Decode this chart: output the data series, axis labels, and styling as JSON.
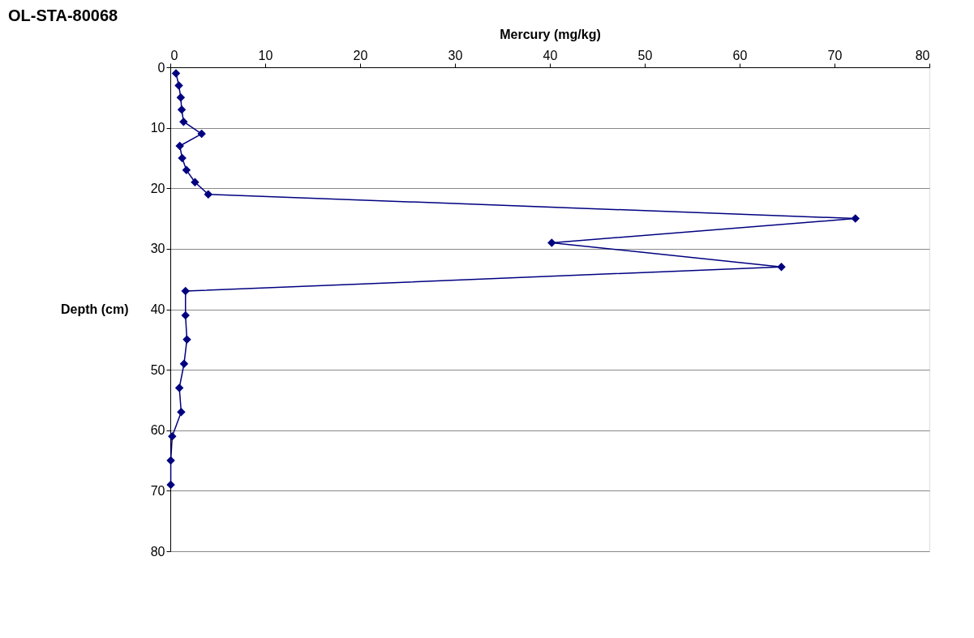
{
  "chart_data": {
    "type": "line",
    "title": "OL-STA-80068",
    "xlabel": "Mercury (mg/kg)",
    "ylabel": "Depth (cm)",
    "xlim": [
      0,
      80
    ],
    "xticks": [
      0,
      10,
      20,
      30,
      40,
      50,
      60,
      70,
      80
    ],
    "ylim": [
      80,
      0
    ],
    "yticks": [
      0,
      10,
      20,
      30,
      40,
      50,
      60,
      70,
      80
    ],
    "grid": "y",
    "marker": "diamond",
    "line_style": "solid",
    "series": [
      {
        "color": "#000080",
        "x": [
          0.6,
          0.9,
          1.1,
          1.2,
          1.4,
          3.3,
          1.0,
          1.25,
          1.7,
          2.6,
          4.0,
          72.2,
          40.2,
          64.4,
          1.6,
          1.6,
          1.75,
          1.45,
          0.95,
          1.15,
          0.2,
          0.05,
          0.05
        ],
        "values": [
          1,
          3,
          5,
          7,
          9,
          11,
          13,
          15,
          17,
          19,
          21,
          25,
          29,
          33,
          37,
          41,
          45,
          49,
          53,
          57,
          61,
          65,
          69
        ]
      }
    ]
  }
}
